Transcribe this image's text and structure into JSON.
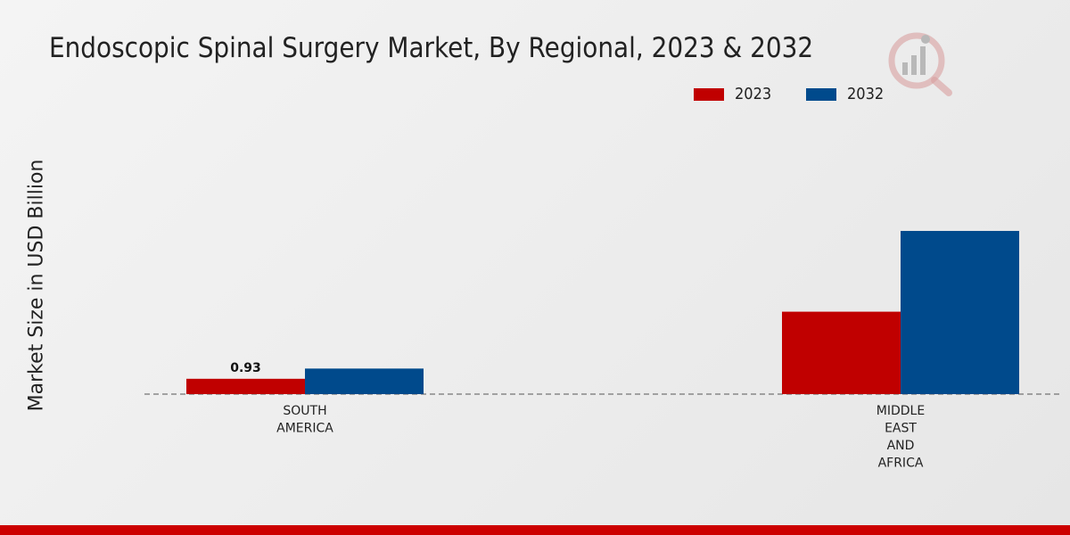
{
  "chart_data": {
    "type": "bar",
    "title": "Endoscopic Spinal Surgery Market, By Regional, 2023 & 2032",
    "xlabel": "",
    "ylabel": "Market Size in USD Billion",
    "categories": [
      [
        "SOUTH",
        "AMERICA"
      ],
      [
        "MIDDLE",
        "EAST",
        "AND",
        "AFRICA"
      ]
    ],
    "series": [
      {
        "name": "2023",
        "color": "#c00000",
        "values": [
          0.93,
          5.0
        ]
      },
      {
        "name": "2032",
        "color": "#004a8c",
        "values": [
          1.55,
          9.9
        ]
      }
    ],
    "data_labels": [
      {
        "series": 0,
        "category": 0,
        "text": "0.93"
      }
    ],
    "ylim": [
      0,
      18.5
    ],
    "grid": false,
    "legend_position": "top-right"
  }
}
